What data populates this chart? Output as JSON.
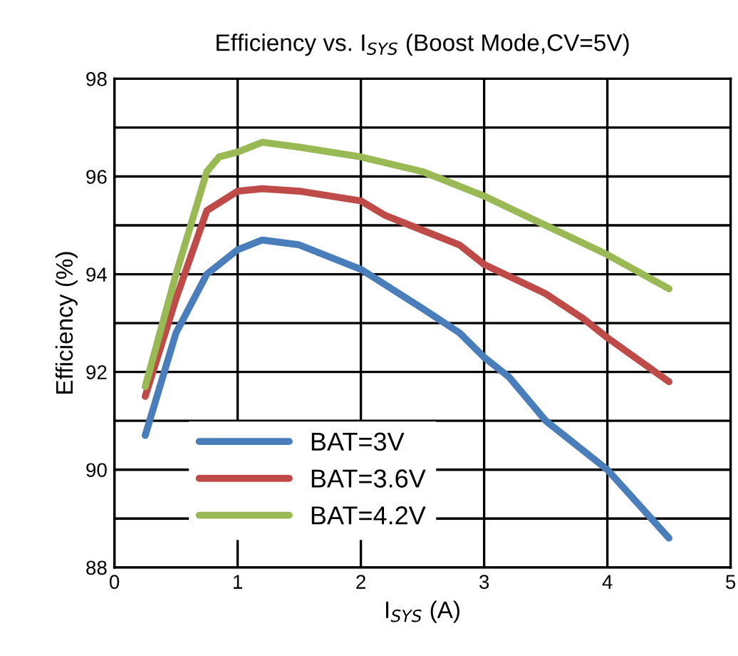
{
  "chart_data": {
    "type": "line",
    "title": "Efficiency vs. I$_{SYS}$ (Boost Mode,CV=5V)",
    "xlabel": "I$_{SYS}$ (A)",
    "ylabel": "Efficiency (%)",
    "xlim": [
      0,
      5
    ],
    "xticks": [
      0,
      1,
      2,
      3,
      4,
      5
    ],
    "ylim": [
      88,
      98
    ],
    "yticks": [
      88,
      {
        "value": 89,
        "label": null
      },
      90,
      {
        "value": 91,
        "label": null
      },
      92,
      {
        "value": 93,
        "label": null
      },
      94,
      {
        "value": 95,
        "label": null
      },
      96,
      {
        "value": 97,
        "label": null
      },
      98
    ],
    "grid": true,
    "legend": "bottom left",
    "marker": "none",
    "line_style": "solid",
    "series": [
      {
        "name": "BAT=3V",
        "color": "#4a7ebb",
        "x": [
          0.25,
          0.5,
          0.75,
          1.0,
          1.2,
          1.5,
          2.0,
          2.5,
          2.8,
          3.0,
          3.2,
          3.5,
          4.0,
          4.5
        ],
        "values": [
          90.7,
          92.8,
          94.0,
          94.5,
          94.7,
          94.6,
          94.1,
          93.3,
          92.8,
          92.3,
          91.9,
          91.0,
          90.0,
          88.6
        ]
      },
      {
        "name": "BAT=3.6V",
        "color": "#be4b48",
        "x": [
          0.25,
          0.5,
          0.75,
          1.0,
          1.2,
          1.5,
          2.0,
          2.2,
          2.5,
          2.8,
          3.0,
          3.5,
          3.8,
          4.0,
          4.5
        ],
        "values": [
          91.5,
          93.5,
          95.3,
          95.7,
          95.75,
          95.7,
          95.5,
          95.2,
          94.9,
          94.6,
          94.2,
          93.6,
          93.1,
          92.7,
          91.8
        ]
      },
      {
        "name": "BAT=4.2V",
        "color": "#98b954",
        "x": [
          0.25,
          0.5,
          0.75,
          0.85,
          1.0,
          1.2,
          1.5,
          2.0,
          2.5,
          3.0,
          3.5,
          4.0,
          4.5
        ],
        "values": [
          91.7,
          94.0,
          96.1,
          96.4,
          96.5,
          96.7,
          96.6,
          96.4,
          96.1,
          95.6,
          95.0,
          94.4,
          93.7
        ]
      }
    ]
  }
}
